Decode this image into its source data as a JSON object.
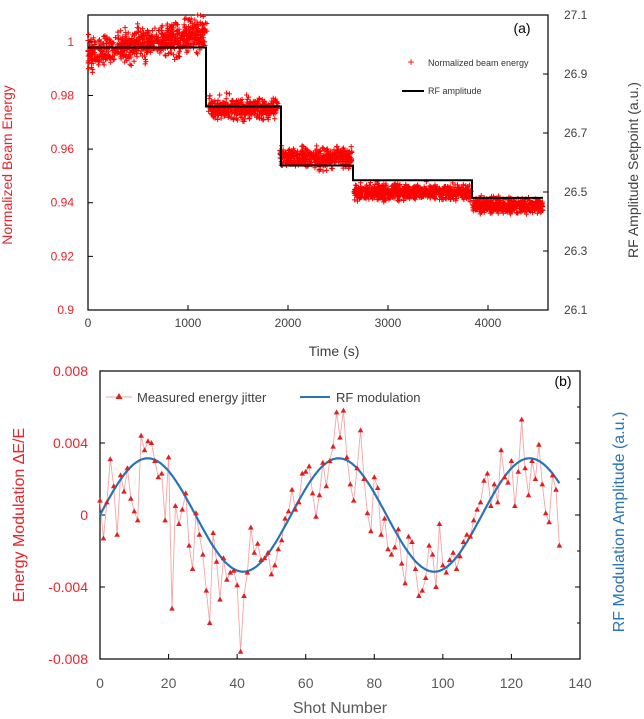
{
  "chart_data": [
    {
      "panel_label": "(a)",
      "type": "scatter",
      "xlabel": "Time (s)",
      "ylabel": "Normalized Beam Energy",
      "y2label": "RF Amplitude Setpoint (a.u.)",
      "xlim": [
        0,
        4600
      ],
      "ylim": [
        0.9,
        1.01
      ],
      "y2lim": [
        26.1,
        27.1
      ],
      "x_ticks": [
        "0",
        "1000",
        "2000",
        "3000",
        "4000"
      ],
      "y_ticks": [
        "0.9",
        "0.92",
        "0.94",
        "0.96",
        "0.98",
        "1"
      ],
      "y2_ticks": [
        "26.1",
        "26.3",
        "26.5",
        "26.7",
        "26.9",
        "27.1"
      ],
      "legend_position": "top-right",
      "series": [
        {
          "name": "Normalized beam energy",
          "color": "#ff0000",
          "marker": "plus",
          "segments": [
            {
              "x_start": 0,
              "x_end": 1190,
              "mean_start": 0.996,
              "mean_end": 1.003,
              "spread": 0.006
            },
            {
              "x_start": 1200,
              "x_end": 1900,
              "mean_start": 0.975,
              "mean_end": 0.975,
              "spread": 0.004
            },
            {
              "x_start": 1920,
              "x_end": 2640,
              "mean_start": 0.957,
              "mean_end": 0.957,
              "spread": 0.004
            },
            {
              "x_start": 2660,
              "x_end": 3830,
              "mean_start": 0.944,
              "mean_end": 0.944,
              "spread": 0.003
            },
            {
              "x_start": 3850,
              "x_end": 4550,
              "mean_start": 0.939,
              "mean_end": 0.939,
              "spread": 0.003
            }
          ]
        },
        {
          "name": "RF amplitude",
          "color": "#000000",
          "type": "step",
          "axis": "right",
          "points": [
            [
              0,
              26.99
            ],
            [
              1180,
              26.99
            ],
            [
              1180,
              26.79
            ],
            [
              1930,
              26.79
            ],
            [
              1930,
              26.59
            ],
            [
              2650,
              26.59
            ],
            [
              2650,
              26.54
            ],
            [
              3840,
              26.54
            ],
            [
              3840,
              26.48
            ],
            [
              4550,
              26.48
            ]
          ]
        }
      ]
    },
    {
      "panel_label": "(b)",
      "type": "line",
      "xlabel": "Shot Number",
      "ylabel": "Energy Modulation ΔE/E",
      "y2label": "RF Modulation Amplitude (a.u.)",
      "xlim": [
        0,
        140
      ],
      "ylim": [
        -0.008,
        0.008
      ],
      "x_ticks": [
        "0",
        "20",
        "40",
        "60",
        "80",
        "100",
        "120",
        "140"
      ],
      "y_ticks": [
        "-0.008",
        "-0.004",
        "0",
        "0.004",
        "0.008"
      ],
      "legend_position": "top-left",
      "series": [
        {
          "name": "Measured energy jitter",
          "color": "#e02020",
          "marker": "triangle",
          "x_start": 0,
          "x_step": 1,
          "values": [
            0.0008,
            -0.0013,
            0.0007,
            0.0031,
            0.0016,
            -0.0011,
            0.0022,
            0.0013,
            0.0026,
            0.0009,
            0.0002,
            -0.0003,
            0.0044,
            0.0036,
            0.0041,
            0.004,
            0.003,
            0.0021,
            0.0023,
            -0.0003,
            0.0032,
            -0.0052,
            0.0005,
            -0.0005,
            0.0003,
            0.0012,
            -0.0017,
            -0.003,
            0.0001,
            -0.0011,
            -0.0022,
            -0.0042,
            -0.006,
            -0.001,
            -0.0026,
            -0.0047,
            -0.0024,
            -0.0036,
            -0.0032,
            -0.0031,
            -0.0039,
            -0.0076,
            -0.0045,
            -0.0032,
            -0.0007,
            -0.0021,
            -0.0016,
            -0.0025,
            -0.0024,
            -0.0021,
            -0.0033,
            -0.0028,
            -0.0019,
            -0.0014,
            -0.0002,
            0.0002,
            0.0014,
            0.0003,
            0.0007,
            0.0023,
            0.0024,
            0.0027,
            0.0012,
            -0.0001,
            0.0011,
            0.0029,
            0.0016,
            0.003,
            0.0038,
            0.0057,
            0.0043,
            0.0058,
            0.0032,
            0.0017,
            0.0008,
            0.0026,
            0.0047,
            0.002,
            0.0001,
            -0.0009,
            0.0021,
            0.0015,
            -0.0011,
            -0.0002,
            -0.0019,
            -0.0022,
            -0.0018,
            -0.0008,
            -0.0027,
            -0.0038,
            -0.0012,
            -0.0015,
            -0.003,
            -0.0045,
            -0.0042,
            -0.0035,
            -0.0017,
            -0.0022,
            -0.004,
            -0.0005,
            -0.0028,
            -0.0032,
            -0.0025,
            -0.0021,
            -0.003,
            -0.0023,
            -0.0015,
            -0.0011,
            -0.0012,
            -0.0003,
            0.0003,
            0.0007,
            0.0019,
            0.0023,
            0.0005,
            0.0017,
            0.0007,
            0.0036,
            0.0021,
            0.0018,
            0.003,
            0.0005,
            0.0024,
            0.0053,
            0.0026,
            0.0011,
            0.003,
            0.002,
            0.0039,
            0.0017,
            0.0001,
            -0.0004,
            0.0022,
            0.0014,
            -0.0017
          ]
        },
        {
          "name": "RF modulation",
          "color": "#2874b8",
          "type": "sine",
          "amplitude": 0.00315,
          "period": 55.7,
          "phase_x": 0,
          "x_range": [
            0,
            134
          ]
        }
      ]
    }
  ],
  "colors": {
    "red": "#ff0000",
    "red_text": "#e8232a",
    "blue_text": "#2874b8",
    "axis": "#000000",
    "tick_gray": "#595959"
  }
}
